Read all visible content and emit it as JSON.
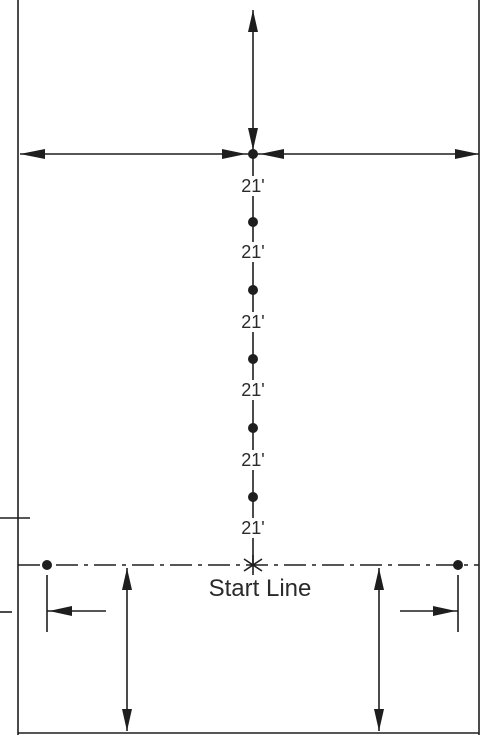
{
  "spacing_labels": [
    "21'",
    "21'",
    "21'",
    "21'",
    "21'",
    "21'"
  ],
  "start_line_label": "Start Line",
  "colors": {
    "ink": "#1e1e1e",
    "background": "#ffffff"
  }
}
